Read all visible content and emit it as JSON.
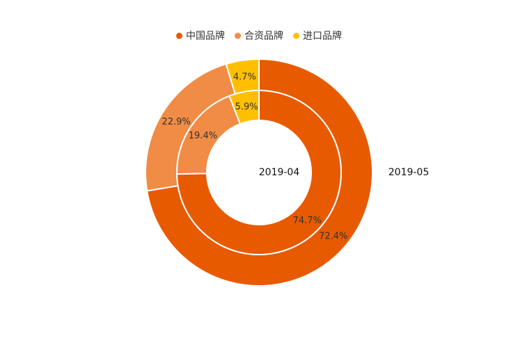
{
  "chart_data": {
    "type": "pie",
    "variant": "nested-donut",
    "legend": [
      "中国品牌",
      "合资品牌",
      "进口品牌"
    ],
    "colors": [
      "#E85A00",
      "#F08C45",
      "#FFBF00"
    ],
    "rings": [
      {
        "name": "2019-04",
        "position": "inner",
        "values": [
          74.7,
          19.4,
          5.9
        ]
      },
      {
        "name": "2019-05",
        "position": "outer",
        "values": [
          72.4,
          22.9,
          4.7
        ]
      }
    ]
  }
}
